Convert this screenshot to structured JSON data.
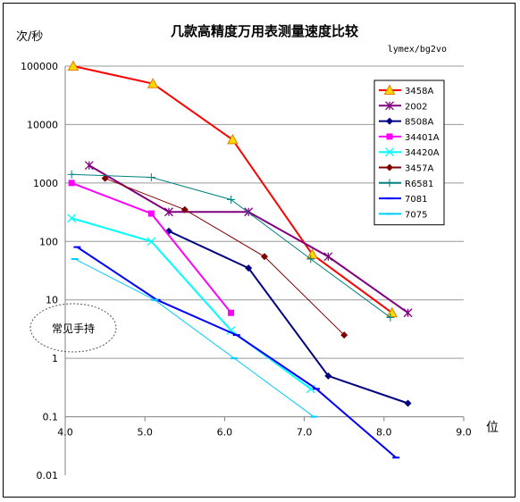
{
  "chart_data": {
    "type": "line",
    "title": "几款高精度万用表测量速度比较",
    "subtitle": "lymex/bg2vo",
    "ylabel": "次/秒",
    "xlabel": "位",
    "y_scale": "log",
    "ylim": [
      0.01,
      100000
    ],
    "xlim": [
      4.0,
      9.0
    ],
    "x_ticks": [
      "4.0",
      "5.0",
      "6.0",
      "7.0",
      "8.0",
      "9.0"
    ],
    "y_ticks": [
      "100000",
      "10000",
      "1000",
      "100",
      "10",
      "1",
      "0.1",
      "0.01"
    ],
    "gridlines": true,
    "legend_position": "top-right",
    "annotation": "常见手持",
    "series": [
      {
        "name": "3458A",
        "color": "#FF0000",
        "marker": "triangle",
        "points": [
          [
            4.1,
            100000
          ],
          [
            5.1,
            50000
          ],
          [
            6.1,
            5500
          ],
          [
            7.1,
            60
          ],
          [
            8.1,
            6
          ]
        ]
      },
      {
        "name": "2002",
        "color": "#800080",
        "marker": "star",
        "points": [
          [
            4.3,
            2000
          ],
          [
            5.3,
            320
          ],
          [
            6.3,
            320
          ],
          [
            7.3,
            55
          ],
          [
            8.3,
            6
          ]
        ]
      },
      {
        "name": "8508A",
        "color": "#000080",
        "marker": "diamond",
        "points": [
          [
            5.3,
            150
          ],
          [
            6.3,
            35
          ],
          [
            7.3,
            0.5
          ],
          [
            8.3,
            0.17
          ]
        ]
      },
      {
        "name": "34401A",
        "color": "#FF00FF",
        "marker": "square",
        "points": [
          [
            4.08,
            1000
          ],
          [
            5.08,
            300
          ],
          [
            6.08,
            6
          ]
        ]
      },
      {
        "name": "34420A",
        "color": "#00FFFF",
        "marker": "x",
        "points": [
          [
            4.08,
            250
          ],
          [
            5.08,
            100
          ],
          [
            6.08,
            3
          ],
          [
            7.08,
            0.3
          ]
        ]
      },
      {
        "name": "3457A",
        "color": "#800000",
        "marker": "diamond",
        "points": [
          [
            4.5,
            1200
          ],
          [
            5.5,
            350
          ],
          [
            6.5,
            55
          ],
          [
            7.5,
            2.5
          ]
        ]
      },
      {
        "name": "R6581",
        "color": "#008080",
        "marker": "plus",
        "points": [
          [
            4.08,
            1400
          ],
          [
            5.08,
            1250
          ],
          [
            6.08,
            520
          ],
          [
            7.08,
            50
          ],
          [
            8.08,
            5
          ]
        ]
      },
      {
        "name": "7081",
        "color": "#0000FF",
        "marker": "dash",
        "points": [
          [
            4.15,
            80
          ],
          [
            5.15,
            10
          ],
          [
            6.15,
            2.5
          ],
          [
            7.15,
            0.3
          ],
          [
            8.15,
            0.02
          ]
        ]
      },
      {
        "name": "7075",
        "color": "#00CCFF",
        "marker": "dash",
        "points": [
          [
            4.12,
            50
          ],
          [
            5.12,
            10
          ],
          [
            6.12,
            1
          ],
          [
            7.12,
            0.1
          ]
        ]
      }
    ]
  }
}
